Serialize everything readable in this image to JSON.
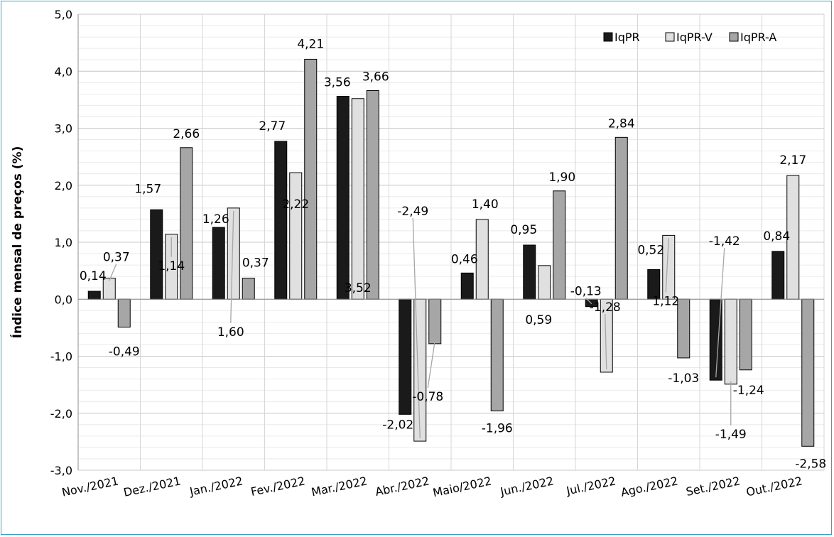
{
  "chart_data": {
    "type": "bar",
    "ylabel": "Índice mensal de preços (%)",
    "xlabel": "",
    "ylim": [
      -3.0,
      5.0
    ],
    "ytick_step": 1.0,
    "grid": true,
    "legend_position": "top-right",
    "categories": [
      "Nov./2021",
      "Dez./2021",
      "Jan./2022",
      "Fev./2022",
      "Mar./2022",
      "Abr./2022",
      "Maio/2022",
      "Jun./2022",
      "Jul./2022",
      "Ago./2022",
      "Set./2022",
      "Out./2022"
    ],
    "series": [
      {
        "name": "IqPR",
        "color": "#1a1a1a",
        "values": [
          0.14,
          1.57,
          1.26,
          2.77,
          3.56,
          -2.02,
          0.46,
          0.95,
          -0.13,
          0.52,
          -1.42,
          0.84
        ]
      },
      {
        "name": "IqPR-V",
        "color": "#e0e0e0",
        "values": [
          0.37,
          1.14,
          1.6,
          2.22,
          3.52,
          -2.49,
          1.4,
          0.59,
          -1.28,
          1.12,
          -1.49,
          2.17
        ]
      },
      {
        "name": "IqPR-A",
        "color": "#a6a6a6",
        "values": [
          -0.49,
          2.66,
          0.37,
          4.21,
          3.66,
          -0.78,
          -1.96,
          1.9,
          2.84,
          -1.03,
          -1.24,
          -2.58
        ]
      }
    ]
  }
}
